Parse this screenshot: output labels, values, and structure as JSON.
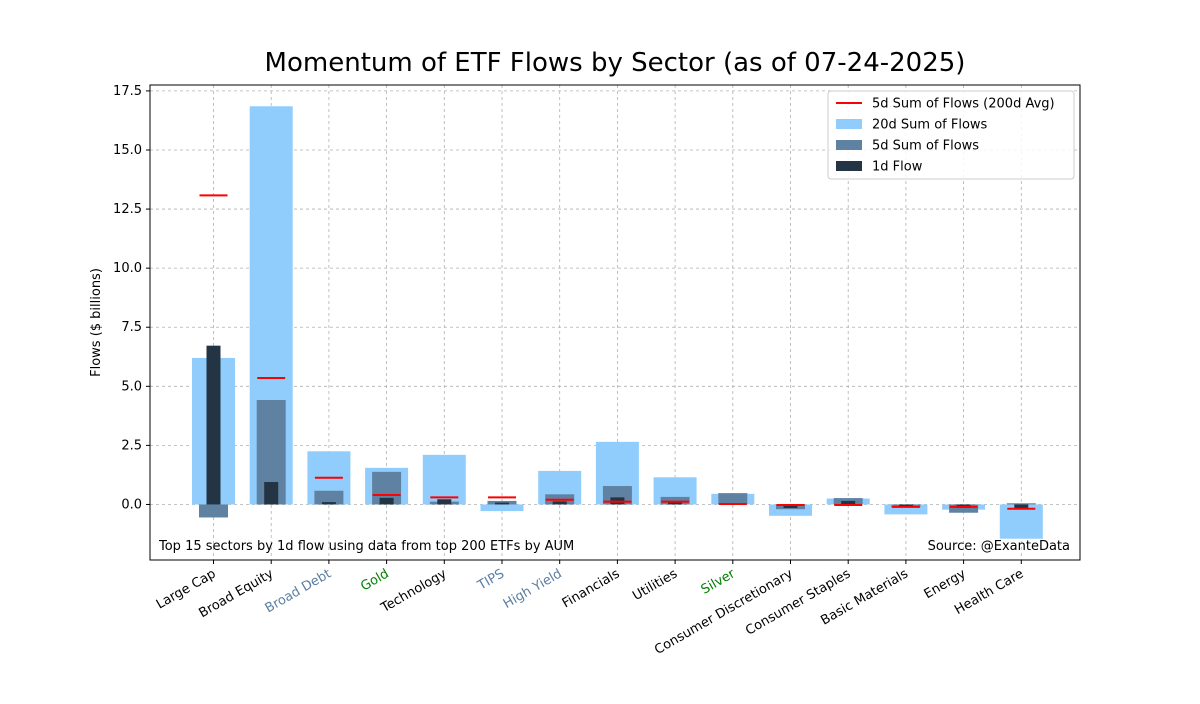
{
  "chart_data": {
    "type": "bar",
    "title": "Momentum of ETF Flows by Sector (as of 07-24-2025)",
    "ylabel": "Flows ($ billions)",
    "xlabel": "",
    "ylim": [
      -2.35,
      17.75
    ],
    "yticks": [
      "0.0",
      "2.5",
      "5.0",
      "7.5",
      "10.0",
      "12.5",
      "15.0",
      "17.5"
    ],
    "grid": true,
    "legend_position": "top-right",
    "categories": [
      "Large Cap",
      "Broad Equity",
      "Broad Debt",
      "Gold",
      "Technology",
      "TIPS",
      "High Yield",
      "Financials",
      "Utilities",
      "Silver",
      "Consumer Discretionary",
      "Consumer Staples",
      "Basic Materials",
      "Energy",
      "Health Care"
    ],
    "category_label_colors": [
      "#000000",
      "#000000",
      "#5b7fa3",
      "#008000",
      "#000000",
      "#5b7fa3",
      "#5b7fa3",
      "#000000",
      "#000000",
      "#008000",
      "#000000",
      "#000000",
      "#000000",
      "#000000",
      "#000000"
    ],
    "series": [
      {
        "name": "20d Sum of Flows",
        "color": "#90cdfc",
        "values": [
          6.2,
          16.85,
          2.25,
          1.55,
          2.1,
          -0.28,
          1.42,
          2.65,
          1.15,
          0.45,
          -0.48,
          0.25,
          -0.42,
          -0.22,
          -1.45
        ]
      },
      {
        "name": "5d Sum of Flows",
        "color": "#5f82a3",
        "values": [
          -0.55,
          4.42,
          0.58,
          1.38,
          0.12,
          0.15,
          0.43,
          0.78,
          0.32,
          0.48,
          -0.2,
          0.27,
          -0.12,
          -0.35,
          0.05
        ]
      },
      {
        "name": "1d Flow",
        "color": "#233445",
        "values": [
          6.72,
          0.95,
          0.1,
          0.28,
          0.22,
          0.08,
          0.13,
          0.3,
          0.1,
          0.0,
          -0.15,
          0.15,
          -0.08,
          -0.15,
          -0.15
        ]
      },
      {
        "name": "5d Sum of Flows (200d Avg)",
        "color": "#ff0000",
        "values": [
          13.08,
          5.35,
          1.13,
          0.4,
          0.3,
          0.3,
          0.2,
          0.12,
          0.12,
          0.02,
          -0.02,
          -0.02,
          -0.1,
          -0.1,
          -0.18
        ]
      }
    ],
    "annotations": {
      "footnote_left": "Top 15 sectors by 1d flow using data from top 200 ETFs by AUM",
      "footnote_right": "Source: @ExanteData"
    }
  }
}
